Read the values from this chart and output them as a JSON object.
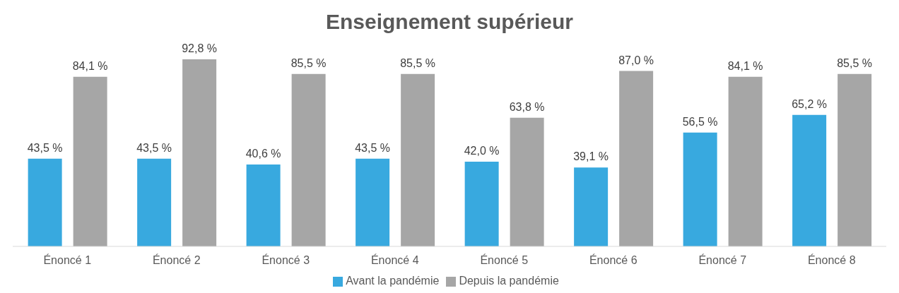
{
  "chart_data": {
    "type": "bar",
    "title": "Enseignement supérieur",
    "categories": [
      "Énoncé 1",
      "Énoncé 2",
      "Énoncé 3",
      "Énoncé 4",
      "Énoncé 5",
      "Énoncé 6",
      "Énoncé 7",
      "Énoncé 8"
    ],
    "series": [
      {
        "name": "Avant la pandémie",
        "color": "#38a9df",
        "values": [
          43.5,
          43.5,
          40.6,
          43.5,
          42.0,
          39.1,
          56.5,
          65.2
        ],
        "value_labels": [
          "43,5 %",
          "43,5 %",
          "40,6 %",
          "43,5 %",
          "42,0 %",
          "39,1 %",
          "56,5 %",
          "65,2 %"
        ]
      },
      {
        "name": "Depuis la pandémie",
        "color": "#a6a6a6",
        "values": [
          84.1,
          92.8,
          85.5,
          85.5,
          63.8,
          87.0,
          84.1,
          85.5
        ],
        "value_labels": [
          "84,1 %",
          "92,8 %",
          "85,5 %",
          "85,5 %",
          "63,8 %",
          "87,0 %",
          "84,1 %",
          "85,5 %"
        ]
      }
    ],
    "grid": false,
    "legend": "bottom"
  }
}
